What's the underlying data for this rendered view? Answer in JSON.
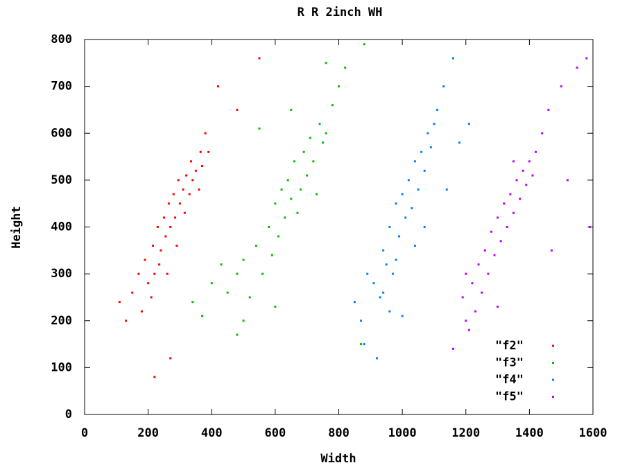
{
  "chart_data": {
    "type": "scatter",
    "title": "R R 2inch WH",
    "x_label": "Width",
    "y_label": "Height",
    "xlim": [
      0,
      1600
    ],
    "ylim": [
      0,
      800
    ],
    "xticks": [
      0,
      200,
      400,
      600,
      800,
      1000,
      1200,
      1400,
      1600
    ],
    "yticks": [
      0,
      100,
      200,
      300,
      400,
      500,
      600,
      700,
      800
    ],
    "legend": "bottom-right",
    "grid": false,
    "series": [
      {
        "name": "\"f2\"",
        "color": "#ff0000",
        "x": [
          110,
          130,
          150,
          170,
          180,
          190,
          200,
          210,
          215,
          220,
          230,
          235,
          240,
          250,
          255,
          260,
          265,
          270,
          280,
          285,
          290,
          295,
          300,
          310,
          315,
          320,
          330,
          335,
          340,
          350,
          360,
          365,
          370,
          380,
          390,
          420,
          480,
          550,
          270,
          220
        ],
        "values": [
          240,
          200,
          260,
          300,
          220,
          330,
          280,
          250,
          360,
          300,
          400,
          320,
          350,
          420,
          380,
          300,
          450,
          400,
          470,
          420,
          360,
          500,
          450,
          480,
          430,
          510,
          470,
          540,
          500,
          520,
          480,
          560,
          530,
          600,
          560,
          700,
          650,
          760,
          120,
          80
        ]
      },
      {
        "name": "\"f3\"",
        "color": "#00c000",
        "x": [
          340,
          370,
          400,
          430,
          450,
          480,
          500,
          520,
          540,
          560,
          580,
          590,
          600,
          610,
          620,
          630,
          640,
          650,
          660,
          670,
          680,
          690,
          700,
          710,
          720,
          730,
          740,
          750,
          760,
          780,
          800,
          820,
          880,
          600,
          500,
          480,
          870,
          760,
          650,
          550
        ],
        "values": [
          240,
          210,
          280,
          320,
          260,
          300,
          330,
          250,
          360,
          300,
          400,
          340,
          450,
          380,
          480,
          420,
          500,
          460,
          540,
          430,
          480,
          560,
          510,
          590,
          540,
          470,
          620,
          580,
          600,
          660,
          700,
          740,
          790,
          230,
          200,
          170,
          150,
          750,
          650,
          610
        ]
      },
      {
        "name": "\"f4\"",
        "color": "#0080ff",
        "x": [
          850,
          870,
          890,
          910,
          930,
          940,
          950,
          960,
          970,
          980,
          990,
          1000,
          1010,
          1020,
          1030,
          1040,
          1050,
          1060,
          1070,
          1080,
          1090,
          1100,
          1110,
          1130,
          1160,
          940,
          960,
          1000,
          920,
          880,
          1180,
          1210,
          1040,
          980,
          1070,
          1140
        ],
        "values": [
          240,
          200,
          300,
          280,
          250,
          350,
          320,
          400,
          300,
          450,
          380,
          470,
          420,
          500,
          440,
          540,
          480,
          560,
          520,
          600,
          570,
          620,
          650,
          700,
          760,
          260,
          220,
          210,
          120,
          150,
          580,
          620,
          360,
          330,
          400,
          480
        ]
      },
      {
        "name": "\"f5\"",
        "color": "#c000ff",
        "x": [
          1190,
          1200,
          1210,
          1220,
          1230,
          1240,
          1250,
          1260,
          1270,
          1280,
          1290,
          1300,
          1310,
          1320,
          1330,
          1340,
          1350,
          1360,
          1370,
          1380,
          1390,
          1400,
          1410,
          1420,
          1440,
          1460,
          1500,
          1550,
          1580,
          1590,
          1520,
          1470,
          1160,
          1200,
          1300,
          1350
        ],
        "values": [
          250,
          200,
          180,
          280,
          220,
          320,
          260,
          350,
          300,
          390,
          340,
          420,
          370,
          450,
          400,
          470,
          430,
          500,
          460,
          520,
          490,
          540,
          510,
          560,
          600,
          650,
          700,
          740,
          760,
          400,
          500,
          350,
          140,
          300,
          230,
          540
        ]
      }
    ]
  }
}
